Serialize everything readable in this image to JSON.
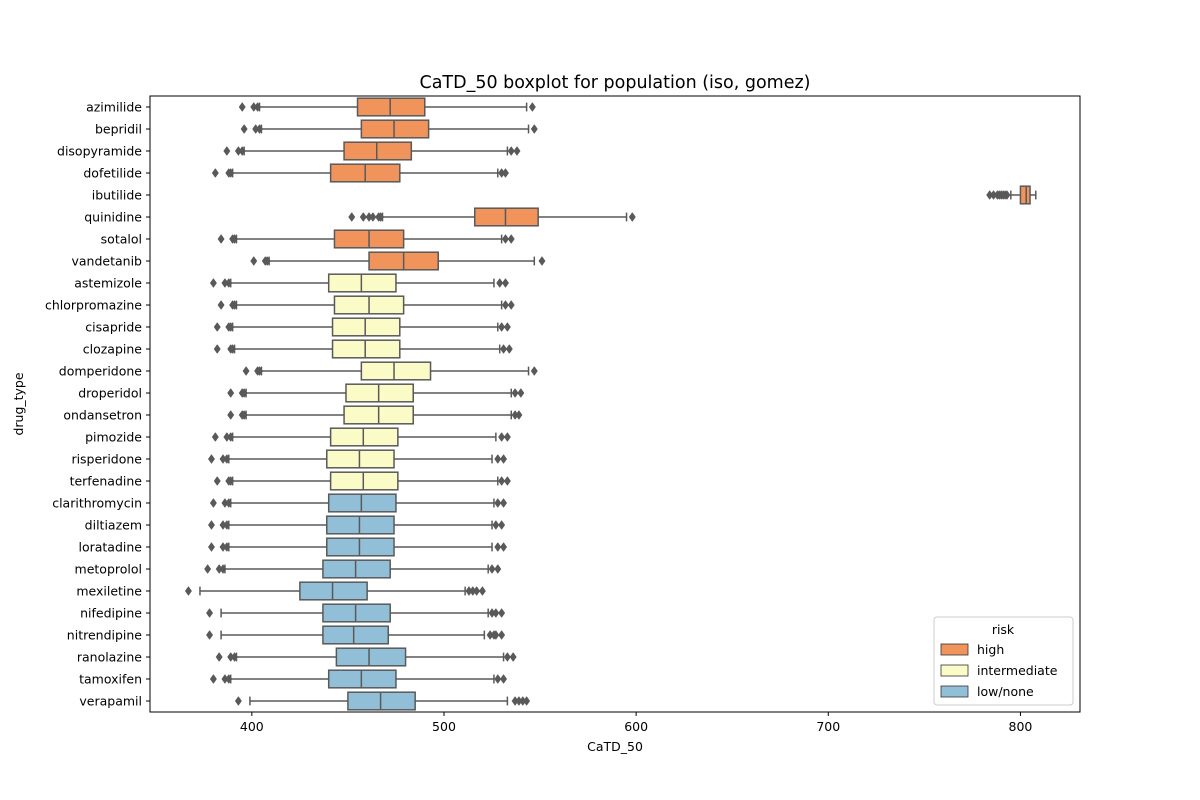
{
  "chart_data": {
    "type": "boxplot",
    "orientation": "horizontal",
    "title": "CaTD_50 boxplot for population (iso, gomez)",
    "xlabel": "CaTD_50",
    "ylabel": "drug_type",
    "xlim": [
      347,
      831
    ],
    "xticks": [
      400,
      500,
      600,
      700,
      800
    ],
    "grid": false,
    "legend": {
      "title": "risk",
      "placement": "lower-right",
      "entries": [
        {
          "label": "high",
          "color": "#f0945c"
        },
        {
          "label": "intermediate",
          "color": "#fbfbc8"
        },
        {
          "label": "low/none",
          "color": "#92bfd8"
        }
      ]
    },
    "series": [
      {
        "name": "azimilide",
        "risk": "high",
        "whisker_low": 404,
        "q1": 455,
        "median": 472,
        "q3": 490,
        "whisker_high": 543,
        "outliers": [
          395,
          401,
          403,
          546
        ]
      },
      {
        "name": "bepridil",
        "risk": "high",
        "whisker_low": 405,
        "q1": 457,
        "median": 474,
        "q3": 492,
        "whisker_high": 544,
        "outliers": [
          396,
          402,
          404,
          547
        ]
      },
      {
        "name": "disopyramide",
        "risk": "high",
        "whisker_low": 396,
        "q1": 448,
        "median": 465,
        "q3": 483,
        "whisker_high": 533,
        "outliers": [
          387,
          393,
          395,
          535,
          538
        ]
      },
      {
        "name": "dofetilide",
        "risk": "high",
        "whisker_low": 390,
        "q1": 441,
        "median": 459,
        "q3": 477,
        "whisker_high": 528,
        "outliers": [
          381,
          388,
          389,
          530,
          532
        ]
      },
      {
        "name": "ibutilide",
        "risk": "high",
        "whisker_low": 795,
        "q1": 800,
        "median": 803,
        "q3": 805,
        "whisker_high": 808,
        "outliers": [
          784,
          786,
          788,
          789,
          790,
          791,
          792,
          793
        ]
      },
      {
        "name": "quinidine",
        "risk": "high",
        "whisker_low": 468,
        "q1": 516,
        "median": 532,
        "q3": 549,
        "whisker_high": 595,
        "outliers": [
          452,
          458,
          461,
          463,
          466,
          467,
          598
        ]
      },
      {
        "name": "sotalol",
        "risk": "high",
        "whisker_low": 392,
        "q1": 443,
        "median": 461,
        "q3": 479,
        "whisker_high": 530,
        "outliers": [
          384,
          390,
          391,
          532,
          535
        ]
      },
      {
        "name": "vandetanib",
        "risk": "high",
        "whisker_low": 409,
        "q1": 461,
        "median": 479,
        "q3": 497,
        "whisker_high": 547,
        "outliers": [
          401,
          407,
          408,
          551
        ]
      },
      {
        "name": "astemizole",
        "risk": "intermediate",
        "whisker_low": 389,
        "q1": 440,
        "median": 457,
        "q3": 475,
        "whisker_high": 526,
        "outliers": [
          380,
          386,
          388,
          529,
          532
        ]
      },
      {
        "name": "chlorpromazine",
        "risk": "intermediate",
        "whisker_low": 392,
        "q1": 443,
        "median": 461,
        "q3": 479,
        "whisker_high": 530,
        "outliers": [
          384,
          390,
          391,
          532,
          535
        ]
      },
      {
        "name": "cisapride",
        "risk": "intermediate",
        "whisker_low": 390,
        "q1": 442,
        "median": 459,
        "q3": 477,
        "whisker_high": 528,
        "outliers": [
          382,
          388,
          389,
          530,
          533
        ]
      },
      {
        "name": "clozapine",
        "risk": "intermediate",
        "whisker_low": 391,
        "q1": 442,
        "median": 459,
        "q3": 477,
        "whisker_high": 529,
        "outliers": [
          382,
          389,
          390,
          531,
          534
        ]
      },
      {
        "name": "domperidone",
        "risk": "intermediate",
        "whisker_low": 405,
        "q1": 457,
        "median": 474,
        "q3": 493,
        "whisker_high": 544,
        "outliers": [
          397,
          403,
          404,
          547
        ]
      },
      {
        "name": "droperidol",
        "risk": "intermediate",
        "whisker_low": 397,
        "q1": 449,
        "median": 466,
        "q3": 484,
        "whisker_high": 535,
        "outliers": [
          389,
          395,
          396,
          537,
          540
        ]
      },
      {
        "name": "ondansetron",
        "risk": "intermediate",
        "whisker_low": 397,
        "q1": 448,
        "median": 466,
        "q3": 484,
        "whisker_high": 535,
        "outliers": [
          389,
          395,
          396,
          537,
          539
        ]
      },
      {
        "name": "pimozide",
        "risk": "intermediate",
        "whisker_low": 390,
        "q1": 441,
        "median": 458,
        "q3": 476,
        "whisker_high": 527,
        "outliers": [
          381,
          387,
          389,
          530,
          533
        ]
      },
      {
        "name": "risperidone",
        "risk": "intermediate",
        "whisker_low": 388,
        "q1": 439,
        "median": 456,
        "q3": 474,
        "whisker_high": 525,
        "outliers": [
          379,
          385,
          387,
          528,
          531
        ]
      },
      {
        "name": "terfenadine",
        "risk": "intermediate",
        "whisker_low": 390,
        "q1": 441,
        "median": 458,
        "q3": 476,
        "whisker_high": 528,
        "outliers": [
          382,
          388,
          389,
          530,
          533
        ]
      },
      {
        "name": "clarithromycin",
        "risk": "low/none",
        "whisker_low": 389,
        "q1": 440,
        "median": 457,
        "q3": 475,
        "whisker_high": 526,
        "outliers": [
          380,
          386,
          388,
          528,
          531
        ]
      },
      {
        "name": "diltiazem",
        "risk": "low/none",
        "whisker_low": 388,
        "q1": 439,
        "median": 456,
        "q3": 474,
        "whisker_high": 525,
        "outliers": [
          379,
          385,
          387,
          527,
          530
        ]
      },
      {
        "name": "loratadine",
        "risk": "low/none",
        "whisker_low": 388,
        "q1": 439,
        "median": 456,
        "q3": 474,
        "whisker_high": 525,
        "outliers": [
          379,
          385,
          387,
          528,
          531
        ]
      },
      {
        "name": "metoprolol",
        "risk": "low/none",
        "whisker_low": 386,
        "q1": 437,
        "median": 454,
        "q3": 472,
        "whisker_high": 523,
        "outliers": [
          377,
          383,
          385,
          525,
          528
        ]
      },
      {
        "name": "mexiletine",
        "risk": "low/none",
        "whisker_low": 373,
        "q1": 425,
        "median": 442,
        "q3": 460,
        "whisker_high": 511,
        "outliers": [
          367,
          513,
          515,
          517,
          520
        ]
      },
      {
        "name": "nifedipine",
        "risk": "low/none",
        "whisker_low": 384,
        "q1": 437,
        "median": 454,
        "q3": 472,
        "whisker_high": 523,
        "outliers": [
          378,
          525,
          527,
          530
        ]
      },
      {
        "name": "nitrendipine",
        "risk": "low/none",
        "whisker_low": 384,
        "q1": 437,
        "median": 453,
        "q3": 471,
        "whisker_high": 521,
        "outliers": [
          378,
          524,
          526,
          527,
          530
        ]
      },
      {
        "name": "ranolazine",
        "risk": "low/none",
        "whisker_low": 392,
        "q1": 444,
        "median": 461,
        "q3": 480,
        "whisker_high": 531,
        "outliers": [
          383,
          389,
          391,
          533,
          536
        ]
      },
      {
        "name": "tamoxifen",
        "risk": "low/none",
        "whisker_low": 389,
        "q1": 440,
        "median": 457,
        "q3": 475,
        "whisker_high": 526,
        "outliers": [
          380,
          386,
          388,
          528,
          531
        ]
      },
      {
        "name": "verapamil",
        "risk": "low/none",
        "whisker_low": 399,
        "q1": 450,
        "median": 467,
        "q3": 485,
        "whisker_high": 533,
        "outliers": [
          393,
          537,
          539,
          541,
          543
        ]
      }
    ]
  }
}
